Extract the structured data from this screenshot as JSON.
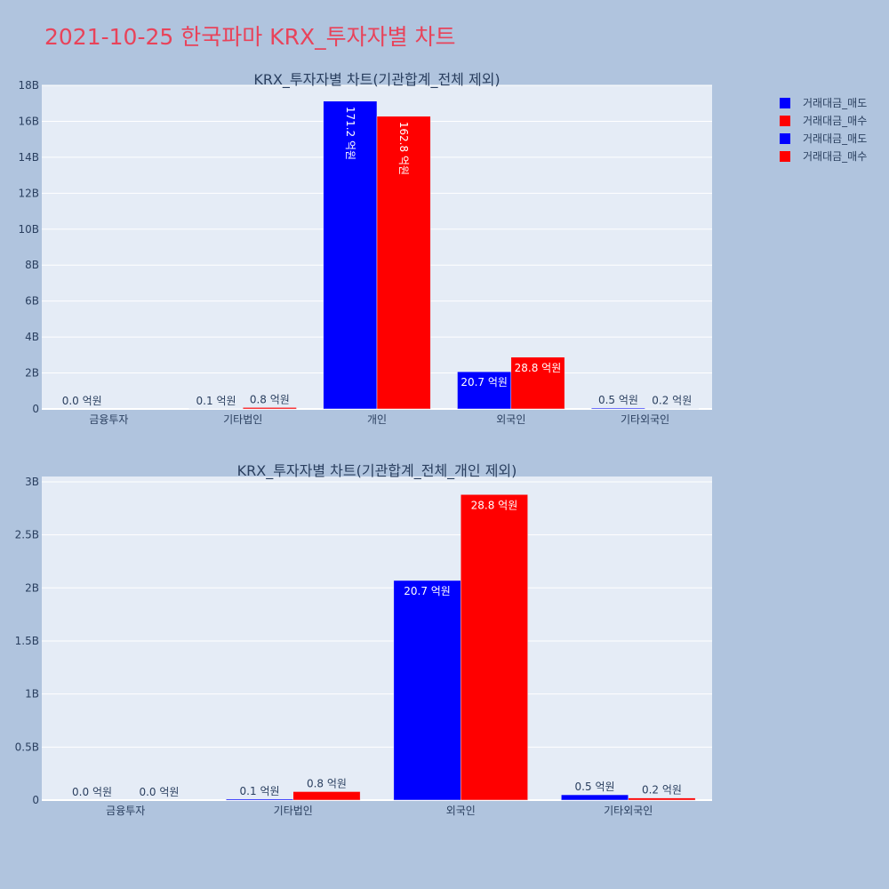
{
  "title": "2021-10-25 한국파마 KRX_투자자별 차트",
  "colors": {
    "sell": "#0000ff",
    "buy": "#ff0000",
    "title": "#e8435a",
    "plot_bg": "#e5ecf6",
    "page_bg": "#b0c4de"
  },
  "legend": [
    {
      "name": "거래대금_매도",
      "color": "#0000ff"
    },
    {
      "name": "거래대금_매수",
      "color": "#ff0000"
    },
    {
      "name": "거래대금_매도",
      "color": "#0000ff"
    },
    {
      "name": "거래대금_매수",
      "color": "#ff0000"
    }
  ],
  "chart_data": [
    {
      "type": "bar",
      "title": "KRX_투자자별 차트(기관합계_전체 제외)",
      "categories": [
        "금융투자",
        "기타법인",
        "개인",
        "외국인",
        "기타외국인"
      ],
      "series": [
        {
          "name": "거래대금_매도",
          "color": "#0000ff",
          "values": [
            0,
            10000000,
            17120000000,
            2070000000,
            50000000
          ],
          "labels": [
            "0.0 억원",
            "0.1 억원",
            "171.2 억원",
            "20.7 억원",
            "0.5 억원"
          ]
        },
        {
          "name": "거래대금_매수",
          "color": "#ff0000",
          "values": [
            0,
            80000000,
            16280000000,
            2880000000,
            20000000
          ],
          "labels": [
            "",
            "0.8 억원",
            "162.8 억원",
            "28.8 억원",
            "0.2 억원"
          ]
        }
      ],
      "ylim": [
        0,
        18000000000
      ],
      "yticks": [
        0,
        2000000000,
        4000000000,
        6000000000,
        8000000000,
        10000000000,
        12000000000,
        14000000000,
        16000000000,
        18000000000
      ],
      "yticklabels": [
        "0",
        "2B",
        "4B",
        "6B",
        "8B",
        "10B",
        "12B",
        "14B",
        "16B",
        "18B"
      ]
    },
    {
      "type": "bar",
      "title": "KRX_투자자별 차트(기관합계_전체_개인 제외)",
      "categories": [
        "금융투자",
        "기타법인",
        "외국인",
        "기타외국인"
      ],
      "series": [
        {
          "name": "거래대금_매도",
          "color": "#0000ff",
          "values": [
            0,
            10000000,
            2070000000,
            50000000
          ],
          "labels": [
            "0.0 억원",
            "0.1 억원",
            "20.7 억원",
            "0.5 억원"
          ]
        },
        {
          "name": "거래대금_매수",
          "color": "#ff0000",
          "values": [
            0,
            80000000,
            2880000000,
            20000000
          ],
          "labels": [
            "0.0 억원",
            "0.8 억원",
            "28.8 억원",
            "0.2 억원"
          ]
        }
      ],
      "ylim": [
        0,
        3050000000
      ],
      "yticks": [
        0,
        500000000,
        1000000000,
        1500000000,
        2000000000,
        2500000000,
        3000000000
      ],
      "yticklabels": [
        "0",
        "0.5B",
        "1B",
        "1.5B",
        "2B",
        "2.5B",
        "3B"
      ]
    }
  ]
}
